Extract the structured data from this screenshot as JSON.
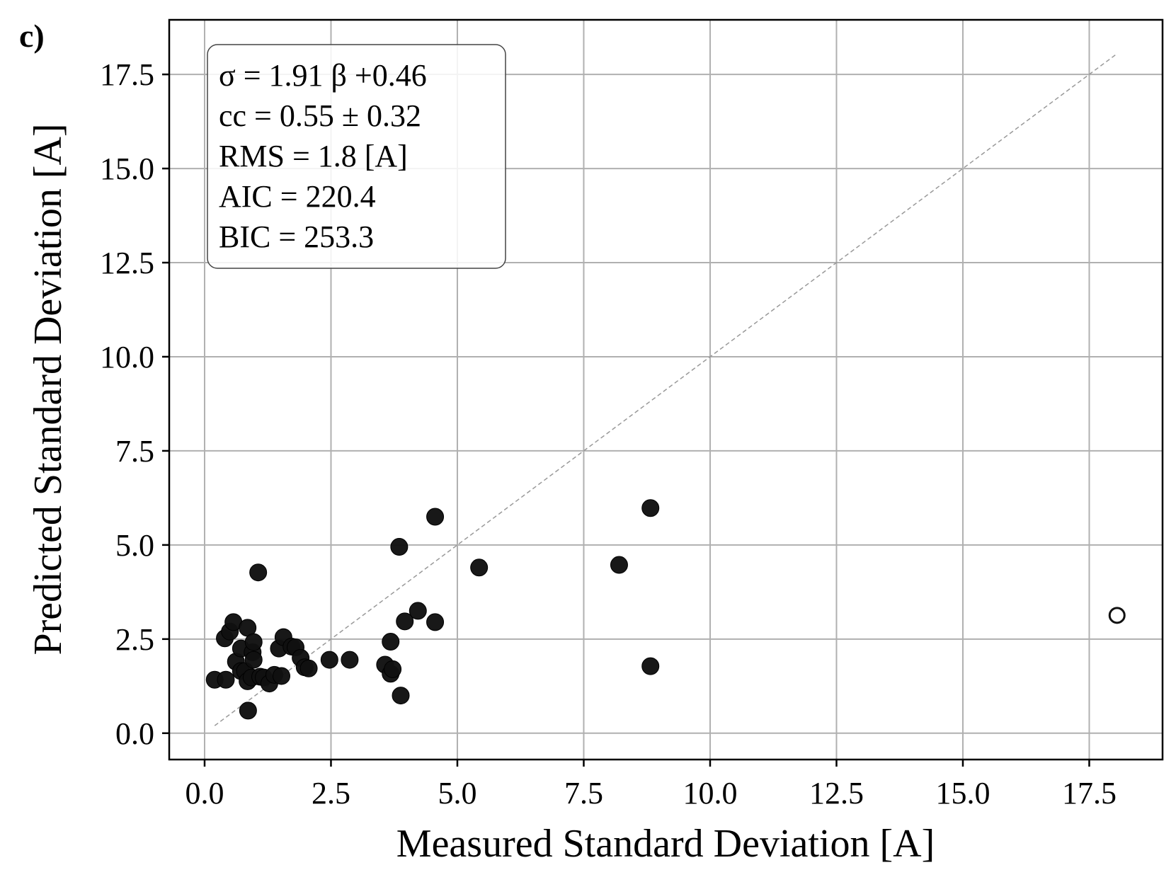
{
  "chart_data": {
    "type": "scatter",
    "panel_label": "c)",
    "xlabel": "Measured Standard Deviation [A]",
    "ylabel": "Predicted Standard Deviation [A]",
    "xlim": [
      -0.7,
      18.95
    ],
    "ylim": [
      -0.7,
      18.95
    ],
    "xticks": [
      0.0,
      2.5,
      5.0,
      7.5,
      10.0,
      12.5,
      15.0,
      17.5
    ],
    "yticks": [
      0.0,
      2.5,
      5.0,
      7.5,
      10.0,
      12.5,
      15.0,
      17.5
    ],
    "tick_labels": [
      "0.0",
      "2.5",
      "5.0",
      "7.5",
      "10.0",
      "12.5",
      "15.0",
      "17.5"
    ],
    "grid": true,
    "reference_line": {
      "style": "dashed",
      "color": "#999999",
      "from": [
        0.2,
        0.2
      ],
      "to": [
        18.05,
        18.05
      ]
    },
    "stats_box": {
      "lines": [
        "σ = 1.91 β +0.46",
        "cc = 0.55 ± 0.32",
        "RMS = 1.8 [A]",
        "AIC = 220.4",
        "BIC = 253.3"
      ]
    },
    "marker_color": "#111111",
    "series": [
      {
        "name": "filled",
        "filled": true,
        "points": [
          [
            0.2,
            1.42
          ],
          [
            0.42,
            1.42
          ],
          [
            0.4,
            2.52
          ],
          [
            0.5,
            2.7
          ],
          [
            0.57,
            2.95
          ],
          [
            0.62,
            1.9
          ],
          [
            0.72,
            1.65
          ],
          [
            0.72,
            2.25
          ],
          [
            0.8,
            1.65
          ],
          [
            0.85,
            2.8
          ],
          [
            0.85,
            1.38
          ],
          [
            0.86,
            0.6
          ],
          [
            0.93,
            1.48
          ],
          [
            0.95,
            2.15
          ],
          [
            0.97,
            2.42
          ],
          [
            0.97,
            1.95
          ],
          [
            1.06,
            4.27
          ],
          [
            1.1,
            1.5
          ],
          [
            1.17,
            1.48
          ],
          [
            1.28,
            1.32
          ],
          [
            1.38,
            1.55
          ],
          [
            1.47,
            2.25
          ],
          [
            1.52,
            1.52
          ],
          [
            1.56,
            2.55
          ],
          [
            1.72,
            2.3
          ],
          [
            1.8,
            2.28
          ],
          [
            1.9,
            2.0
          ],
          [
            1.98,
            1.75
          ],
          [
            2.06,
            1.72
          ],
          [
            2.47,
            1.95
          ],
          [
            2.87,
            1.95
          ],
          [
            3.57,
            1.82
          ],
          [
            3.68,
            1.58
          ],
          [
            3.72,
            1.7
          ],
          [
            3.68,
            2.43
          ],
          [
            3.85,
            4.95
          ],
          [
            3.88,
            1.0
          ],
          [
            3.96,
            2.97
          ],
          [
            4.22,
            3.25
          ],
          [
            4.56,
            2.95
          ],
          [
            4.56,
            5.75
          ],
          [
            5.43,
            4.4
          ],
          [
            8.2,
            4.47
          ],
          [
            8.82,
            5.98
          ],
          [
            8.82,
            1.78
          ]
        ]
      },
      {
        "name": "open",
        "filled": false,
        "points": [
          [
            18.05,
            3.13
          ]
        ]
      }
    ]
  }
}
